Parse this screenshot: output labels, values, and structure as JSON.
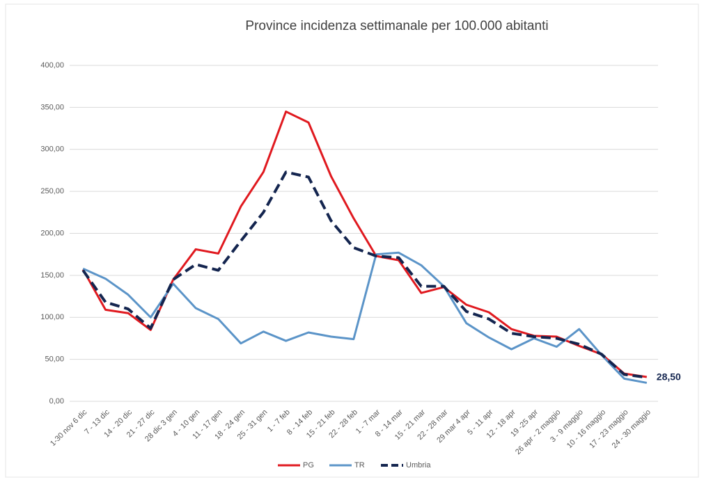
{
  "chart_data": {
    "type": "line",
    "title": "Province incidenza settimanale per 100.000 abitanti",
    "categories": [
      "1-30 nov 6 dic",
      "7 - 13 dic",
      "14 - 20 dic",
      "21 - 27 dic",
      "28 dic 3 gen",
      "4 - 10 gen",
      "11 - 17 gen",
      "18 - 24 gen",
      "25 - 31 gen",
      "1 - 7 feb",
      "8 - 14 feb",
      "15 - 21 feb",
      "22 - 28 feb",
      "1 - 7 mar",
      "8 - 14 mar",
      "15 - 21 mar",
      "22 - 28 mar",
      "29 mar 4 apr",
      "5 - 11 apr",
      "12 - 18 apr",
      "19 -25 apr",
      "26 apr - 2 maggio",
      "3 - 9 maggio",
      "10 - 16 maggio",
      "17 - 23 maggio",
      "24 - 30 maggio"
    ],
    "series": [
      {
        "name": "PG",
        "color": "#e0191f",
        "values": [
          157,
          109,
          105,
          85,
          145,
          181,
          176,
          232,
          273,
          345,
          332,
          268,
          218,
          173,
          168,
          129,
          136,
          115,
          106,
          86,
          78,
          77,
          66,
          56,
          33,
          29
        ]
      },
      {
        "name": "TR",
        "color": "#5b94c8",
        "values": [
          158,
          146,
          127,
          100,
          140,
          111,
          98,
          69,
          83,
          72,
          82,
          77,
          74,
          175,
          177,
          162,
          137,
          93,
          76,
          62,
          75,
          65,
          86,
          55,
          27,
          22
        ]
      },
      {
        "name": "Umbria",
        "color": "#14254f",
        "dashed": true,
        "values": [
          156,
          118,
          110,
          87,
          145,
          163,
          156,
          191,
          225,
          273,
          267,
          215,
          183,
          173,
          171,
          137,
          137,
          107,
          98,
          81,
          77,
          75,
          68,
          56,
          32,
          28.5
        ],
        "value_labels": [
          null,
          null,
          null,
          null,
          null,
          null,
          null,
          null,
          null,
          null,
          null,
          null,
          null,
          null,
          null,
          null,
          null,
          null,
          null,
          null,
          null,
          null,
          null,
          null,
          null,
          "28,50"
        ]
      }
    ],
    "ylim": [
      0,
      400
    ],
    "yticks": [
      {
        "value": 0,
        "label": "0,00"
      },
      {
        "value": 50,
        "label": "50,00"
      },
      {
        "value": 100,
        "label": "100,00"
      },
      {
        "value": 150,
        "label": "150,00"
      },
      {
        "value": 200,
        "label": "200,00"
      },
      {
        "value": 250,
        "label": "250,00"
      },
      {
        "value": 300,
        "label": "300,00"
      },
      {
        "value": 350,
        "label": "350,00"
      },
      {
        "value": 400,
        "label": "400,00"
      }
    ],
    "grid": true,
    "legend": "bottom"
  }
}
